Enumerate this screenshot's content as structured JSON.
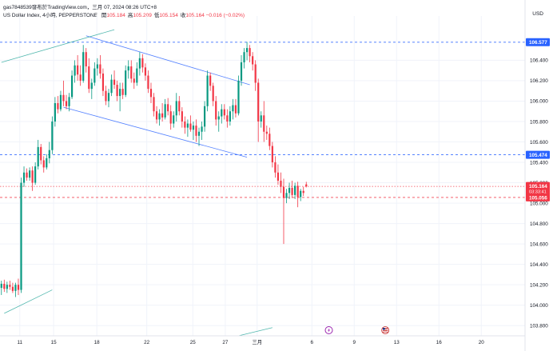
{
  "header": {
    "line1": "gas7848539發布於TradingView.com，三月 07, 2024 08:26 UTC+8",
    "symbol": "US Dollar Index, 4小時, PEPPERSTONE",
    "ohlc": [
      {
        "label": "開",
        "value": "105.184"
      },
      {
        "label": "高",
        "value": "105.209"
      },
      {
        "label": "低",
        "value": "105.154"
      },
      {
        "label": "收",
        "value": "105.164"
      }
    ],
    "change": "−0.016 (−0.02%)",
    "currency": "USD"
  },
  "chart_data": {
    "type": "candlestick",
    "title": "US Dollar Index, 4小時, PEPPERSTONE",
    "ylim": [
      103.7,
      106.74
    ],
    "y_ticks": [
      "106.400",
      "106.200",
      "106.000",
      "105.800",
      "105.600",
      "105.400",
      "105.200",
      "105.000",
      "104.800",
      "104.600",
      "104.400",
      "104.200",
      "104.000",
      "103.800"
    ],
    "x_ticks": [
      {
        "label": "11",
        "idx": 6.5
      },
      {
        "label": "15",
        "idx": 18.5
      },
      {
        "label": "18",
        "idx": 33.8
      },
      {
        "label": "22",
        "idx": 51.5
      },
      {
        "label": "25",
        "idx": 67.8
      },
      {
        "label": "27",
        "idx": 79.3
      },
      {
        "label": "三月",
        "idx": 90.6
      },
      {
        "label": "6",
        "idx": 110
      },
      {
        "label": "9",
        "idx": 125
      },
      {
        "label": "13",
        "idx": 140
      },
      {
        "label": "16",
        "idx": 155
      },
      {
        "label": "20",
        "idx": 170
      }
    ],
    "n_slots": 186,
    "last_price": {
      "value": "105.164",
      "countdown": "03:33:41",
      "color": "#f23645"
    },
    "levels": [
      {
        "value": 106.577,
        "label": "106.577",
        "style": "dashed",
        "color": "#2962ff",
        "tag": true
      },
      {
        "value": 105.474,
        "label": "105.474",
        "style": "dashed",
        "color": "#2962ff",
        "tag": true
      },
      {
        "value": 105.056,
        "label": "105.056",
        "style": "dashed",
        "color": "#f23645",
        "tag": true
      },
      {
        "value": 105.164,
        "label": "",
        "style": "dotted",
        "color": "#f23645",
        "tag": false
      }
    ],
    "trendlines": [
      {
        "name": "channel-upper",
        "from": [
          30,
          106.64
        ],
        "to": [
          88,
          106.16
        ],
        "color": "#2962ff"
      },
      {
        "name": "channel-lower",
        "from": [
          22,
          105.94
        ],
        "to": [
          87,
          105.45
        ],
        "color": "#2962ff"
      },
      {
        "name": "upper-extension",
        "from": [
          0,
          106.38
        ],
        "to": [
          40,
          106.7
        ],
        "color": "#26a69a"
      },
      {
        "name": "lower-support",
        "from": [
          1,
          103.92
        ],
        "to": [
          18,
          104.15
        ],
        "color": "#26a69a"
      },
      {
        "name": "small-bottom-line",
        "from": [
          84,
          103.7
        ],
        "to": [
          96,
          103.78
        ],
        "color": "#26a69a"
      }
    ],
    "icons": [
      {
        "name": "lightning-event",
        "idx": 116
      },
      {
        "name": "us-flag-event",
        "idx": 136
      }
    ],
    "candles": [
      {
        "o": 104.17,
        "h": 104.24,
        "l": 104.1,
        "c": 104.21
      },
      {
        "o": 104.21,
        "h": 104.25,
        "l": 104.13,
        "c": 104.16
      },
      {
        "o": 104.16,
        "h": 104.23,
        "l": 104.12,
        "c": 104.2
      },
      {
        "o": 104.2,
        "h": 104.24,
        "l": 104.15,
        "c": 104.18
      },
      {
        "o": 104.18,
        "h": 104.22,
        "l": 104.12,
        "c": 104.14
      },
      {
        "o": 104.14,
        "h": 104.22,
        "l": 104.08,
        "c": 104.2
      },
      {
        "o": 104.2,
        "h": 104.26,
        "l": 104.1,
        "c": 104.15
      },
      {
        "o": 104.15,
        "h": 105.25,
        "l": 104.12,
        "c": 105.2
      },
      {
        "o": 105.2,
        "h": 105.36,
        "l": 105.16,
        "c": 105.3
      },
      {
        "o": 105.3,
        "h": 105.34,
        "l": 105.22,
        "c": 105.25
      },
      {
        "o": 105.25,
        "h": 105.35,
        "l": 105.22,
        "c": 105.32
      },
      {
        "o": 105.32,
        "h": 105.36,
        "l": 105.12,
        "c": 105.2
      },
      {
        "o": 105.2,
        "h": 105.4,
        "l": 105.18,
        "c": 105.36
      },
      {
        "o": 105.36,
        "h": 105.62,
        "l": 105.33,
        "c": 105.55
      },
      {
        "o": 105.55,
        "h": 105.58,
        "l": 105.38,
        "c": 105.42
      },
      {
        "o": 105.42,
        "h": 105.46,
        "l": 105.3,
        "c": 105.35
      },
      {
        "o": 105.35,
        "h": 105.48,
        "l": 105.33,
        "c": 105.44
      },
      {
        "o": 105.44,
        "h": 105.6,
        "l": 105.39,
        "c": 105.52
      },
      {
        "o": 105.52,
        "h": 105.85,
        "l": 105.48,
        "c": 105.8
      },
      {
        "o": 105.8,
        "h": 106.04,
        "l": 105.75,
        "c": 105.98
      },
      {
        "o": 105.98,
        "h": 106.05,
        "l": 105.88,
        "c": 105.92
      },
      {
        "o": 105.92,
        "h": 106.1,
        "l": 105.9,
        "c": 106.06
      },
      {
        "o": 106.06,
        "h": 106.2,
        "l": 105.95,
        "c": 106.0
      },
      {
        "o": 106.0,
        "h": 106.06,
        "l": 105.92,
        "c": 105.95
      },
      {
        "o": 105.95,
        "h": 106.08,
        "l": 105.9,
        "c": 106.04
      },
      {
        "o": 106.04,
        "h": 106.3,
        "l": 106.02,
        "c": 106.25
      },
      {
        "o": 106.25,
        "h": 106.4,
        "l": 106.18,
        "c": 106.35
      },
      {
        "o": 106.35,
        "h": 106.45,
        "l": 106.2,
        "c": 106.26
      },
      {
        "o": 106.26,
        "h": 106.35,
        "l": 106.15,
        "c": 106.2
      },
      {
        "o": 106.2,
        "h": 106.55,
        "l": 106.18,
        "c": 106.48
      },
      {
        "o": 106.48,
        "h": 106.52,
        "l": 106.28,
        "c": 106.34
      },
      {
        "o": 106.34,
        "h": 106.42,
        "l": 106.08,
        "c": 106.12
      },
      {
        "o": 106.12,
        "h": 106.22,
        "l": 106.02,
        "c": 106.18
      },
      {
        "o": 106.18,
        "h": 106.38,
        "l": 106.15,
        "c": 106.32
      },
      {
        "o": 106.32,
        "h": 106.42,
        "l": 106.25,
        "c": 106.36
      },
      {
        "o": 106.36,
        "h": 106.45,
        "l": 106.22,
        "c": 106.27
      },
      {
        "o": 106.27,
        "h": 106.32,
        "l": 106.05,
        "c": 106.1
      },
      {
        "o": 106.1,
        "h": 106.15,
        "l": 105.96,
        "c": 106.0
      },
      {
        "o": 106.0,
        "h": 106.12,
        "l": 105.94,
        "c": 106.08
      },
      {
        "o": 106.08,
        "h": 106.26,
        "l": 106.05,
        "c": 106.21
      },
      {
        "o": 106.21,
        "h": 106.3,
        "l": 106.12,
        "c": 106.16
      },
      {
        "o": 106.16,
        "h": 106.2,
        "l": 106.0,
        "c": 106.05
      },
      {
        "o": 106.05,
        "h": 106.18,
        "l": 105.9,
        "c": 106.12
      },
      {
        "o": 106.12,
        "h": 106.18,
        "l": 106.02,
        "c": 106.06
      },
      {
        "o": 106.06,
        "h": 106.35,
        "l": 106.04,
        "c": 106.3
      },
      {
        "o": 106.3,
        "h": 106.4,
        "l": 106.22,
        "c": 106.34
      },
      {
        "o": 106.34,
        "h": 106.4,
        "l": 106.18,
        "c": 106.22
      },
      {
        "o": 106.22,
        "h": 106.28,
        "l": 106.12,
        "c": 106.18
      },
      {
        "o": 106.18,
        "h": 106.38,
        "l": 106.15,
        "c": 106.32
      },
      {
        "o": 106.32,
        "h": 106.48,
        "l": 106.25,
        "c": 106.42
      },
      {
        "o": 106.42,
        "h": 106.46,
        "l": 106.28,
        "c": 106.33
      },
      {
        "o": 106.33,
        "h": 106.37,
        "l": 106.2,
        "c": 106.25
      },
      {
        "o": 106.25,
        "h": 106.3,
        "l": 106.08,
        "c": 106.12
      },
      {
        "o": 106.12,
        "h": 106.18,
        "l": 105.98,
        "c": 106.04
      },
      {
        "o": 106.04,
        "h": 106.08,
        "l": 105.85,
        "c": 105.9
      },
      {
        "o": 105.9,
        "h": 105.95,
        "l": 105.78,
        "c": 105.82
      },
      {
        "o": 105.82,
        "h": 105.92,
        "l": 105.76,
        "c": 105.88
      },
      {
        "o": 105.88,
        "h": 105.98,
        "l": 105.8,
        "c": 105.84
      },
      {
        "o": 105.84,
        "h": 106.02,
        "l": 105.82,
        "c": 105.97
      },
      {
        "o": 105.97,
        "h": 106.03,
        "l": 105.86,
        "c": 105.9
      },
      {
        "o": 105.9,
        "h": 105.96,
        "l": 105.72,
        "c": 105.78
      },
      {
        "o": 105.78,
        "h": 105.9,
        "l": 105.74,
        "c": 105.86
      },
      {
        "o": 105.86,
        "h": 106.08,
        "l": 105.8,
        "c": 106.0
      },
      {
        "o": 106.0,
        "h": 106.05,
        "l": 105.86,
        "c": 105.9
      },
      {
        "o": 105.9,
        "h": 105.94,
        "l": 105.74,
        "c": 105.8
      },
      {
        "o": 105.8,
        "h": 105.85,
        "l": 105.68,
        "c": 105.74
      },
      {
        "o": 105.74,
        "h": 105.82,
        "l": 105.65,
        "c": 105.78
      },
      {
        "o": 105.78,
        "h": 105.86,
        "l": 105.7,
        "c": 105.72
      },
      {
        "o": 105.72,
        "h": 105.8,
        "l": 105.62,
        "c": 105.76
      },
      {
        "o": 105.76,
        "h": 105.82,
        "l": 105.6,
        "c": 105.66
      },
      {
        "o": 105.66,
        "h": 105.74,
        "l": 105.56,
        "c": 105.7
      },
      {
        "o": 105.7,
        "h": 105.8,
        "l": 105.62,
        "c": 105.75
      },
      {
        "o": 105.75,
        "h": 106.0,
        "l": 105.7,
        "c": 105.95
      },
      {
        "o": 105.95,
        "h": 106.3,
        "l": 105.9,
        "c": 106.25
      },
      {
        "o": 106.25,
        "h": 106.28,
        "l": 106.1,
        "c": 106.15
      },
      {
        "o": 106.15,
        "h": 106.18,
        "l": 105.95,
        "c": 106.0
      },
      {
        "o": 106.0,
        "h": 106.05,
        "l": 105.76,
        "c": 105.82
      },
      {
        "o": 105.82,
        "h": 105.9,
        "l": 105.7,
        "c": 105.85
      },
      {
        "o": 105.85,
        "h": 105.97,
        "l": 105.78,
        "c": 105.92
      },
      {
        "o": 105.92,
        "h": 105.97,
        "l": 105.82,
        "c": 105.86
      },
      {
        "o": 105.86,
        "h": 105.92,
        "l": 105.74,
        "c": 105.8
      },
      {
        "o": 105.8,
        "h": 105.95,
        "l": 105.76,
        "c": 105.9
      },
      {
        "o": 105.9,
        "h": 106.02,
        "l": 105.82,
        "c": 105.96
      },
      {
        "o": 105.96,
        "h": 106.02,
        "l": 105.84,
        "c": 105.88
      },
      {
        "o": 105.88,
        "h": 106.25,
        "l": 105.86,
        "c": 106.2
      },
      {
        "o": 106.2,
        "h": 106.45,
        "l": 106.15,
        "c": 106.38
      },
      {
        "o": 106.38,
        "h": 106.52,
        "l": 106.32,
        "c": 106.48
      },
      {
        "o": 106.48,
        "h": 106.58,
        "l": 106.4,
        "c": 106.52
      },
      {
        "o": 106.52,
        "h": 106.55,
        "l": 106.38,
        "c": 106.44
      },
      {
        "o": 106.44,
        "h": 106.48,
        "l": 106.3,
        "c": 106.36
      },
      {
        "o": 106.36,
        "h": 106.4,
        "l": 106.1,
        "c": 106.18
      },
      {
        "o": 106.18,
        "h": 106.22,
        "l": 105.6,
        "c": 105.8
      },
      {
        "o": 105.8,
        "h": 105.9,
        "l": 105.74,
        "c": 105.86
      },
      {
        "o": 105.86,
        "h": 106.0,
        "l": 105.6,
        "c": 105.7
      },
      {
        "o": 105.7,
        "h": 105.76,
        "l": 105.62,
        "c": 105.68
      },
      {
        "o": 105.68,
        "h": 105.74,
        "l": 105.52,
        "c": 105.56
      },
      {
        "o": 105.56,
        "h": 105.6,
        "l": 105.35,
        "c": 105.4
      },
      {
        "o": 105.4,
        "h": 105.46,
        "l": 105.25,
        "c": 105.3
      },
      {
        "o": 105.3,
        "h": 105.38,
        "l": 105.18,
        "c": 105.22
      },
      {
        "o": 105.22,
        "h": 105.3,
        "l": 105.1,
        "c": 105.16
      },
      {
        "o": 105.16,
        "h": 105.24,
        "l": 104.6,
        "c": 105.05
      },
      {
        "o": 105.05,
        "h": 105.14,
        "l": 105.0,
        "c": 105.1
      },
      {
        "o": 105.1,
        "h": 105.2,
        "l": 105.04,
        "c": 105.15
      },
      {
        "o": 105.15,
        "h": 105.22,
        "l": 105.05,
        "c": 105.08
      },
      {
        "o": 105.08,
        "h": 105.2,
        "l": 105.04,
        "c": 105.17
      },
      {
        "o": 105.17,
        "h": 105.21,
        "l": 104.96,
        "c": 105.06
      },
      {
        "o": 105.06,
        "h": 105.14,
        "l": 105.02,
        "c": 105.12
      },
      {
        "o": 105.12,
        "h": 105.16,
        "l": 105.07,
        "c": 105.1
      },
      {
        "o": 105.184,
        "h": 105.209,
        "l": 105.154,
        "c": 105.164
      }
    ]
  }
}
